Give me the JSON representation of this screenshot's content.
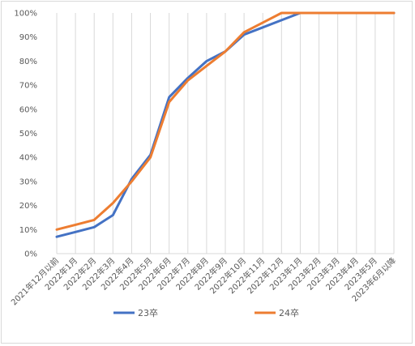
{
  "chart_data": {
    "type": "line",
    "title": "",
    "xlabel": "",
    "ylabel": "",
    "ylim": [
      0,
      100
    ],
    "y_ticks": [
      "0%",
      "10%",
      "20%",
      "30%",
      "40%",
      "50%",
      "60%",
      "70%",
      "80%",
      "90%",
      "100%"
    ],
    "grid": "vertical",
    "legend_position": "bottom",
    "categories": [
      "2021年12月以前",
      "2022年1月",
      "2022年2月",
      "2022年3月",
      "2022年4月",
      "2022年5月",
      "2022年6月",
      "2022年7月",
      "2022年8月",
      "2022年9月",
      "2022年10月",
      "2022年11月",
      "2022年12月",
      "2023年1月",
      "2023年2月",
      "2023年3月",
      "2023年4月",
      "2023年5月",
      "2023年6月以降"
    ],
    "series": [
      {
        "name": "23卒",
        "color": "#4472c4",
        "values": [
          7,
          9,
          11,
          16,
          31,
          41,
          65,
          73,
          80,
          84,
          91,
          94,
          97,
          100,
          100,
          100,
          100,
          100,
          100
        ]
      },
      {
        "name": "24卒",
        "color": "#ed7d31",
        "values": [
          10,
          12,
          14,
          21,
          30,
          40,
          63,
          72,
          78,
          84,
          92,
          96,
          100,
          100,
          100,
          100,
          100,
          100,
          100
        ]
      }
    ]
  }
}
